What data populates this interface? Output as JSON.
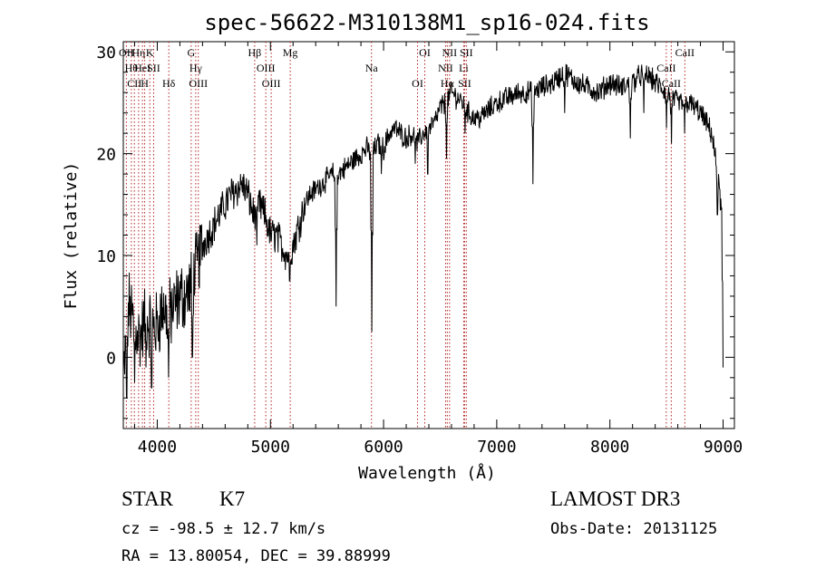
{
  "chart_data": {
    "type": "line",
    "title": "spec-56622-M310138M1_sp16-024.fits",
    "xlabel": "Wavelength (Å)",
    "ylabel": "Flux (relative)",
    "xlim": [
      3700,
      9100
    ],
    "ylim": [
      -7,
      31
    ],
    "xticks": [
      4000,
      5000,
      6000,
      7000,
      8000,
      9000
    ],
    "yticks": [
      0,
      10,
      20,
      30
    ],
    "xtick_labels": [
      "4000",
      "5000",
      "6000",
      "7000",
      "8000",
      "9000"
    ],
    "ytick_labels": [
      "0",
      "10",
      "20",
      "30"
    ],
    "series": [
      {
        "name": "flux",
        "anchors": [
          [
            3700,
            -2
          ],
          [
            3750,
            5
          ],
          [
            3800,
            3
          ],
          [
            3850,
            2
          ],
          [
            3900,
            4
          ],
          [
            3950,
            3
          ],
          [
            4000,
            3
          ],
          [
            4050,
            5
          ],
          [
            4100,
            4
          ],
          [
            4150,
            5
          ],
          [
            4200,
            6
          ],
          [
            4250,
            6
          ],
          [
            4300,
            7
          ],
          [
            4350,
            9
          ],
          [
            4400,
            11
          ],
          [
            4450,
            12
          ],
          [
            4500,
            13
          ],
          [
            4550,
            14
          ],
          [
            4600,
            15
          ],
          [
            4650,
            16
          ],
          [
            4700,
            16.5
          ],
          [
            4750,
            17
          ],
          [
            4800,
            16
          ],
          [
            4850,
            14
          ],
          [
            4900,
            15
          ],
          [
            4950,
            14
          ],
          [
            5000,
            12
          ],
          [
            5050,
            12
          ],
          [
            5100,
            11
          ],
          [
            5150,
            10
          ],
          [
            5200,
            11
          ],
          [
            5250,
            13
          ],
          [
            5300,
            15
          ],
          [
            5350,
            16
          ],
          [
            5400,
            16.5
          ],
          [
            5450,
            17
          ],
          [
            5500,
            17.5
          ],
          [
            5550,
            18
          ],
          [
            5600,
            18
          ],
          [
            5650,
            18.5
          ],
          [
            5700,
            19
          ],
          [
            5750,
            19.5
          ],
          [
            5800,
            20
          ],
          [
            5850,
            20.5
          ],
          [
            5900,
            20
          ],
          [
            5950,
            21
          ],
          [
            6000,
            20.5
          ],
          [
            6050,
            22
          ],
          [
            6100,
            22.5
          ],
          [
            6150,
            22
          ],
          [
            6200,
            21.5
          ],
          [
            6250,
            22
          ],
          [
            6300,
            21
          ],
          [
            6350,
            22
          ],
          [
            6400,
            22.5
          ],
          [
            6450,
            23
          ],
          [
            6500,
            24.5
          ],
          [
            6550,
            25
          ],
          [
            6600,
            26
          ],
          [
            6650,
            25.5
          ],
          [
            6700,
            25
          ],
          [
            6750,
            24
          ],
          [
            6800,
            23.5
          ],
          [
            6850,
            23.5
          ],
          [
            6900,
            24
          ],
          [
            7000,
            25
          ],
          [
            7100,
            25.5
          ],
          [
            7200,
            26
          ],
          [
            7300,
            26
          ],
          [
            7400,
            26.5
          ],
          [
            7500,
            27
          ],
          [
            7600,
            28
          ],
          [
            7700,
            27
          ],
          [
            7800,
            26.5
          ],
          [
            7900,
            26
          ],
          [
            8000,
            27
          ],
          [
            8100,
            26.5
          ],
          [
            8200,
            27
          ],
          [
            8300,
            28
          ],
          [
            8400,
            27
          ],
          [
            8500,
            26
          ],
          [
            8600,
            25
          ],
          [
            8700,
            25
          ],
          [
            8800,
            24
          ],
          [
            8900,
            22
          ],
          [
            8950,
            18
          ],
          [
            9000,
            13
          ]
        ],
        "dips": [
          [
            3730,
            -4
          ],
          [
            3800,
            -2.5
          ],
          [
            3900,
            -1
          ],
          [
            3950,
            -3
          ],
          [
            4100,
            -2
          ],
          [
            4310,
            0
          ],
          [
            4880,
            11
          ],
          [
            5170,
            7.5
          ],
          [
            5580,
            5
          ],
          [
            5895,
            2.5
          ],
          [
            5980,
            18
          ],
          [
            6280,
            19
          ],
          [
            6390,
            18
          ],
          [
            6555,
            19.5
          ],
          [
            6720,
            22
          ],
          [
            7320,
            17
          ],
          [
            7600,
            24
          ],
          [
            8180,
            21.5
          ],
          [
            8300,
            24
          ],
          [
            8500,
            22.5
          ],
          [
            8545,
            21
          ],
          [
            8660,
            22
          ],
          [
            8950,
            14
          ],
          [
            9000,
            -1
          ]
        ]
      }
    ],
    "line_markers": [
      {
        "wavelength": 3727,
        "label": "OII"
      },
      {
        "wavelength": 3771,
        "label": "Hθ"
      },
      {
        "wavelength": 3798,
        "label": "CII"
      },
      {
        "wavelength": 3835,
        "label": "Hη"
      },
      {
        "wavelength": 3869,
        "label": "HeI"
      },
      {
        "wavelength": 3889,
        "label": "H"
      },
      {
        "wavelength": 3934,
        "label": "K"
      },
      {
        "wavelength": 3968,
        "label": "SII"
      },
      {
        "wavelength": 4102,
        "label": "Hδ"
      },
      {
        "wavelength": 4300,
        "label": "G"
      },
      {
        "wavelength": 4340,
        "label": "Hγ"
      },
      {
        "wavelength": 4363,
        "label": "OIII"
      },
      {
        "wavelength": 4861,
        "label": "Hβ"
      },
      {
        "wavelength": 4959,
        "label": "OIII"
      },
      {
        "wavelength": 5007,
        "label": "OIII"
      },
      {
        "wavelength": 5175,
        "label": "Mg"
      },
      {
        "wavelength": 5893,
        "label": "Na"
      },
      {
        "wavelength": 6300,
        "label": "OI"
      },
      {
        "wavelength": 6364,
        "label": "OI"
      },
      {
        "wavelength": 6548,
        "label": "NII"
      },
      {
        "wavelength": 6563,
        "label": "Hα"
      },
      {
        "wavelength": 6583,
        "label": "NII"
      },
      {
        "wavelength": 6708,
        "label": "Li"
      },
      {
        "wavelength": 6716,
        "label": "SII"
      },
      {
        "wavelength": 6731,
        "label": "SII"
      },
      {
        "wavelength": 8498,
        "label": "CaII"
      },
      {
        "wavelength": 8542,
        "label": "CaII"
      },
      {
        "wavelength": 8662,
        "label": "CaII"
      }
    ],
    "colors": {
      "line": "#000000",
      "markers": "#b22222",
      "axes": "#000000"
    }
  },
  "footer": {
    "object_class": "STAR",
    "subclass": "K7",
    "survey": "LAMOST DR3",
    "cz_text": "cz = -98.5 ± 12.7 km/s",
    "obs_date": "Obs-Date: 20131125",
    "coords": "RA =  13.80054, DEC =  39.88999"
  }
}
